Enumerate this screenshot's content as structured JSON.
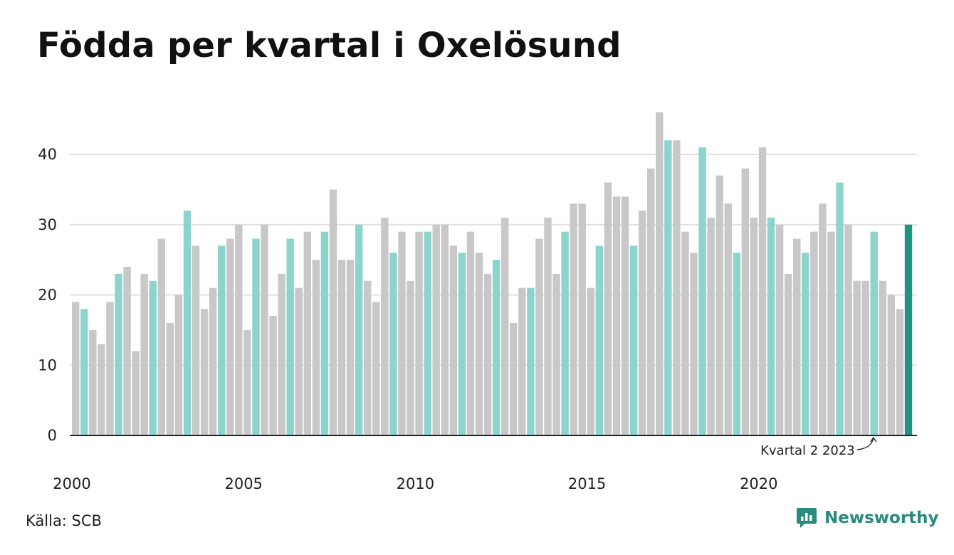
{
  "title": "Födda per kvartal i Oxelösund",
  "source": "Källa: SCB",
  "brand": {
    "name": "Newsworthy",
    "icon": "newsworthy-logo-icon"
  },
  "colors": {
    "gray": "#c8c8c8",
    "teal_light": "#8dd5cc",
    "teal_dark": "#1e9583",
    "grid": "#e1e1e1",
    "axis": "#222222"
  },
  "chart_data": {
    "type": "bar",
    "title": "Födda per kvartal i Oxelösund",
    "xlabel": "",
    "ylabel": "",
    "ylim": [
      0,
      48
    ],
    "yticks": [
      0,
      10,
      20,
      30,
      40
    ],
    "xticks": [
      "2000",
      "2005",
      "2010",
      "2015",
      "2020"
    ],
    "grid": true,
    "annotation": {
      "text": "Kvartal 2 2023",
      "target_index": 93
    },
    "highlight": "second quarter of each year in light teal, latest quarter in dark teal",
    "categories": [
      "2000 Q1",
      "2000 Q2",
      "2000 Q3",
      "2000 Q4",
      "2001 Q1",
      "2001 Q2",
      "2001 Q3",
      "2001 Q4",
      "2002 Q1",
      "2002 Q2",
      "2002 Q3",
      "2002 Q4",
      "2003 Q1",
      "2003 Q2",
      "2003 Q3",
      "2003 Q4",
      "2004 Q1",
      "2004 Q2",
      "2004 Q3",
      "2004 Q4",
      "2005 Q1",
      "2005 Q2",
      "2005 Q3",
      "2005 Q4",
      "2006 Q1",
      "2006 Q2",
      "2006 Q3",
      "2006 Q4",
      "2007 Q1",
      "2007 Q2",
      "2007 Q3",
      "2007 Q4",
      "2008 Q1",
      "2008 Q2",
      "2008 Q3",
      "2008 Q4",
      "2009 Q1",
      "2009 Q2",
      "2009 Q3",
      "2009 Q4",
      "2010 Q1",
      "2010 Q2",
      "2010 Q3",
      "2010 Q4",
      "2011 Q1",
      "2011 Q2",
      "2011 Q3",
      "2011 Q4",
      "2012 Q1",
      "2012 Q2",
      "2012 Q3",
      "2012 Q4",
      "2013 Q1",
      "2013 Q2",
      "2013 Q3",
      "2013 Q4",
      "2014 Q1",
      "2014 Q2",
      "2014 Q3",
      "2014 Q4",
      "2015 Q1",
      "2015 Q2",
      "2015 Q3",
      "2015 Q4",
      "2016 Q1",
      "2016 Q2",
      "2016 Q3",
      "2016 Q4",
      "2017 Q1",
      "2017 Q2",
      "2017 Q3",
      "2017 Q4",
      "2018 Q1",
      "2018 Q2",
      "2018 Q3",
      "2018 Q4",
      "2019 Q1",
      "2019 Q2",
      "2019 Q3",
      "2019 Q4",
      "2020 Q1",
      "2020 Q2",
      "2020 Q3",
      "2020 Q4",
      "2021 Q1",
      "2021 Q2",
      "2021 Q3",
      "2021 Q4",
      "2022 Q1",
      "2022 Q2",
      "2022 Q3",
      "2022 Q4",
      "2023 Q1",
      "2023 Q2",
      "2023 Q3",
      "2023 Q4",
      "2024 Q1",
      "2024 Q2"
    ],
    "values": [
      19,
      18,
      15,
      13,
      19,
      23,
      24,
      12,
      23,
      22,
      28,
      16,
      20,
      32,
      27,
      18,
      21,
      27,
      28,
      30,
      15,
      28,
      30,
      17,
      23,
      28,
      21,
      29,
      25,
      29,
      35,
      25,
      25,
      30,
      22,
      19,
      31,
      26,
      29,
      22,
      29,
      29,
      30,
      30,
      27,
      26,
      29,
      26,
      23,
      25,
      31,
      16,
      21,
      21,
      28,
      31,
      23,
      29,
      33,
      33,
      21,
      27,
      36,
      34,
      34,
      27,
      32,
      38,
      46,
      42,
      42,
      29,
      26,
      41,
      31,
      37,
      33,
      26,
      38,
      31,
      41,
      31,
      30,
      23,
      28,
      26,
      29,
      33,
      29,
      36,
      30,
      22,
      22,
      29,
      22,
      20,
      18,
      30
    ]
  }
}
